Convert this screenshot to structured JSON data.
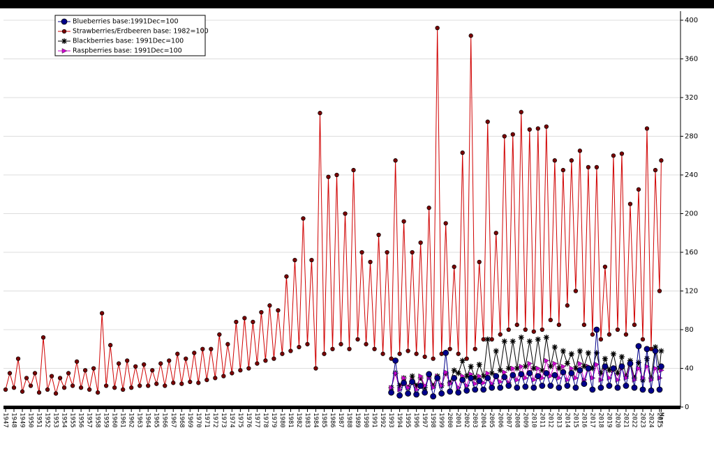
{
  "chart_data": {
    "type": "line",
    "grid": true,
    "legend": "top-left",
    "xlim": [
      1947,
      2025.5
    ],
    "ylim": [
      0,
      400
    ],
    "yticks": [
      0,
      40,
      80,
      120,
      160,
      200,
      240,
      280,
      320,
      360,
      400
    ],
    "xticks": [
      1947,
      1948,
      1949,
      1950,
      1951,
      1952,
      1953,
      1954,
      1955,
      1956,
      1957,
      1958,
      1959,
      1960,
      1961,
      1962,
      1963,
      1964,
      1965,
      1966,
      1967,
      1968,
      1969,
      1970,
      1971,
      1972,
      1973,
      1974,
      1975,
      1976,
      1977,
      1978,
      1979,
      1980,
      1981,
      1982,
      1983,
      1984,
      1985,
      1986,
      1987,
      1988,
      1989,
      1990,
      1991,
      1992,
      1993,
      1994,
      1995,
      1996,
      1997,
      1998,
      1999,
      2000,
      2001,
      2002,
      2003,
      2004,
      2005,
      2006,
      2007,
      2008,
      2009,
      2010,
      2011,
      2012,
      2013,
      2014,
      2015,
      2016,
      2017,
      2018,
      2019,
      2020,
      2021,
      2022,
      2023,
      2024,
      2025,
      {
        "value": 2025.2,
        "label": "Mar"
      }
    ],
    "series": [
      {
        "name": "Blueberries base:1991Dec=100",
        "color": "#00008b",
        "marker": "circle",
        "x": [
          1993,
          1993.5,
          1994,
          1994.5,
          1995,
          1995.5,
          1996,
          1996.5,
          1997,
          1997.5,
          1998,
          1998.5,
          1999,
          1999.5,
          2000,
          2000.5,
          2001,
          2001.5,
          2002,
          2002.5,
          2003,
          2003.5,
          2004,
          2004.5,
          2005,
          2005.5,
          2006,
          2006.5,
          2007,
          2007.5,
          2008,
          2008.5,
          2009,
          2009.5,
          2010,
          2010.5,
          2011,
          2011.5,
          2012,
          2012.5,
          2013,
          2013.5,
          2014,
          2014.5,
          2015,
          2015.5,
          2016,
          2016.5,
          2017,
          2017.5,
          2018,
          2018.5,
          2019,
          2019.5,
          2020,
          2020.5,
          2021,
          2021.5,
          2022,
          2022.5,
          2023,
          2023.5,
          2024,
          2024.5,
          2025,
          2025.2
        ],
        "values": [
          15,
          48,
          12,
          25,
          14,
          26,
          13,
          22,
          15,
          34,
          11,
          30,
          14,
          56,
          16,
          30,
          15,
          28,
          17,
          30,
          18,
          27,
          18,
          30,
          20,
          32,
          20,
          31,
          22,
          33,
          20,
          34,
          21,
          35,
          20,
          32,
          22,
          35,
          22,
          33,
          20,
          36,
          22,
          35,
          20,
          38,
          24,
          40,
          18,
          80,
          20,
          42,
          22,
          40,
          20,
          42,
          22,
          45,
          20,
          63,
          18,
          60,
          17,
          58,
          18,
          42
        ]
      },
      {
        "name": "Strawberries/Erdbeeren base: 1982=100",
        "color": "#d00000",
        "marker": "dot",
        "x": [
          1947,
          1947.5,
          1948,
          1948.5,
          1949,
          1949.5,
          1950,
          1950.5,
          1951,
          1951.5,
          1952,
          1952.5,
          1953,
          1953.5,
          1954,
          1954.5,
          1955,
          1955.5,
          1956,
          1956.5,
          1957,
          1957.5,
          1958,
          1958.5,
          1959,
          1959.5,
          1960,
          1960.5,
          1961,
          1961.5,
          1962,
          1962.5,
          1963,
          1963.5,
          1964,
          1964.5,
          1965,
          1965.5,
          1966,
          1966.5,
          1967,
          1967.5,
          1968,
          1968.5,
          1969,
          1969.5,
          1970,
          1970.5,
          1971,
          1971.5,
          1972,
          1972.5,
          1973,
          1973.5,
          1974,
          1974.5,
          1975,
          1975.5,
          1976,
          1976.5,
          1977,
          1977.5,
          1978,
          1978.5,
          1979,
          1979.5,
          1980,
          1980.5,
          1981,
          1981.5,
          1982,
          1982.5,
          1983,
          1983.5,
          1984,
          1984.5,
          1985,
          1985.5,
          1986,
          1986.5,
          1987,
          1987.5,
          1988,
          1988.5,
          1989,
          1989.5,
          1990,
          1990.5,
          1991,
          1991.5,
          1992,
          1992.5,
          1993,
          1993.5,
          1994,
          1994.5,
          1995,
          1995.5,
          1996,
          1996.5,
          1997,
          1997.5,
          1998,
          1998.5,
          1999,
          1999.5,
          2000,
          2000.5,
          2001,
          2001.5,
          2002,
          2002.5,
          2003,
          2003.5,
          2004,
          2004.5,
          2005,
          2005.5,
          2006,
          2006.5,
          2007,
          2007.5,
          2008,
          2008.5,
          2009,
          2009.5,
          2010,
          2010.5,
          2011,
          2011.5,
          2012,
          2012.5,
          2013,
          2013.5,
          2014,
          2014.5,
          2015,
          2015.5,
          2016,
          2016.5,
          2017,
          2017.5,
          2018,
          2018.5,
          2019,
          2019.5,
          2020,
          2020.5,
          2021,
          2021.5,
          2022,
          2022.5,
          2023,
          2023.5,
          2024,
          2024.5,
          2025,
          2025.2
        ],
        "values": [
          18,
          35,
          20,
          50,
          16,
          30,
          22,
          35,
          15,
          72,
          18,
          32,
          14,
          30,
          20,
          35,
          22,
          47,
          20,
          38,
          18,
          40,
          15,
          97,
          22,
          64,
          20,
          45,
          18,
          48,
          20,
          42,
          22,
          44,
          22,
          38,
          24,
          45,
          22,
          48,
          25,
          55,
          24,
          50,
          26,
          56,
          25,
          60,
          28,
          60,
          30,
          75,
          32,
          65,
          35,
          88,
          38,
          92,
          40,
          88,
          45,
          98,
          48,
          105,
          50,
          100,
          55,
          135,
          58,
          152,
          62,
          195,
          65,
          152,
          40,
          304,
          55,
          238,
          60,
          240,
          65,
          200,
          60,
          245,
          70,
          160,
          65,
          150,
          60,
          178,
          55,
          160,
          50,
          255,
          55,
          192,
          58,
          160,
          55,
          170,
          52,
          206,
          50,
          392,
          55,
          190,
          60,
          145,
          55,
          263,
          50,
          384,
          60,
          150,
          70,
          295,
          70,
          180,
          75,
          280,
          80,
          282,
          85,
          305,
          80,
          287,
          78,
          288,
          80,
          290,
          90,
          255,
          85,
          245,
          105,
          255,
          120,
          265,
          85,
          248,
          75,
          248,
          70,
          145,
          75,
          260,
          80,
          262,
          75,
          210,
          85,
          225,
          70,
          288,
          60,
          245,
          120,
          255
        ]
      },
      {
        "name": "Blackberries base: 1991Dec=100",
        "color": "#000000",
        "marker": "star",
        "x": [
          1993,
          1993.5,
          1994,
          1994.5,
          1995,
          1995.5,
          1996,
          1996.5,
          1997,
          1997.5,
          1998,
          1998.5,
          1999,
          1999.5,
          2000,
          2000.5,
          2001,
          2001.5,
          2002,
          2002.5,
          2003,
          2003.5,
          2004,
          2004.5,
          2005,
          2005.5,
          2006,
          2006.5,
          2007,
          2007.5,
          2008,
          2008.5,
          2009,
          2009.5,
          2010,
          2010.5,
          2011,
          2011.5,
          2012,
          2012.5,
          2013,
          2013.5,
          2014,
          2014.5,
          2015,
          2015.5,
          2016,
          2016.5,
          2017,
          2017.5,
          2018,
          2018.5,
          2019,
          2019.5,
          2020,
          2020.5,
          2021,
          2021.5,
          2022,
          2022.5,
          2023,
          2023.5,
          2024,
          2024.5,
          2025,
          2025.2
        ],
        "values": [
          20,
          35,
          22,
          30,
          20,
          32,
          22,
          30,
          20,
          33,
          22,
          32,
          22,
          35,
          25,
          38,
          35,
          48,
          32,
          42,
          30,
          44,
          32,
          70,
          35,
          58,
          38,
          68,
          40,
          68,
          40,
          72,
          42,
          68,
          40,
          70,
          38,
          72,
          42,
          62,
          40,
          58,
          45,
          55,
          40,
          58,
          42,
          56,
          40,
          56,
          35,
          50,
          38,
          55,
          35,
          52,
          32,
          48,
          30,
          46,
          28,
          50,
          30,
          62,
          40,
          58
        ]
      },
      {
        "name": "Raspberries base: 1991Dec=100",
        "color": "#cc00cc",
        "marker": "triangle",
        "x": [
          1993,
          1993.5,
          1994,
          1994.5,
          1995,
          1995.5,
          1996,
          1996.5,
          1997,
          1997.5,
          1998,
          1998.5,
          1999,
          1999.5,
          2000,
          2000.5,
          2001,
          2001.5,
          2002,
          2002.5,
          2003,
          2003.5,
          2004,
          2004.5,
          2005,
          2005.5,
          2006,
          2006.5,
          2007,
          2007.5,
          2008,
          2008.5,
          2009,
          2009.5,
          2010,
          2010.5,
          2011,
          2011.5,
          2012,
          2012.5,
          2013,
          2013.5,
          2014,
          2014.5,
          2015,
          2015.5,
          2016,
          2016.5,
          2017,
          2017.5,
          2018,
          2018.5,
          2019,
          2019.5,
          2020,
          2020.5,
          2021,
          2021.5,
          2022,
          2022.5,
          2023,
          2023.5,
          2024,
          2024.5,
          2025,
          2025.2
        ],
        "values": [
          20,
          35,
          18,
          30,
          20,
          28,
          18,
          32,
          22,
          30,
          20,
          32,
          22,
          36,
          24,
          30,
          20,
          32,
          22,
          34,
          24,
          32,
          25,
          35,
          24,
          33,
          26,
          36,
          25,
          40,
          28,
          42,
          30,
          45,
          28,
          40,
          30,
          48,
          32,
          45,
          30,
          42,
          28,
          40,
          30,
          45,
          28,
          42,
          30,
          44,
          28,
          40,
          30,
          38,
          28,
          40,
          30,
          44,
          28,
          40,
          30,
          42,
          28,
          40,
          30,
          38
        ]
      }
    ]
  }
}
